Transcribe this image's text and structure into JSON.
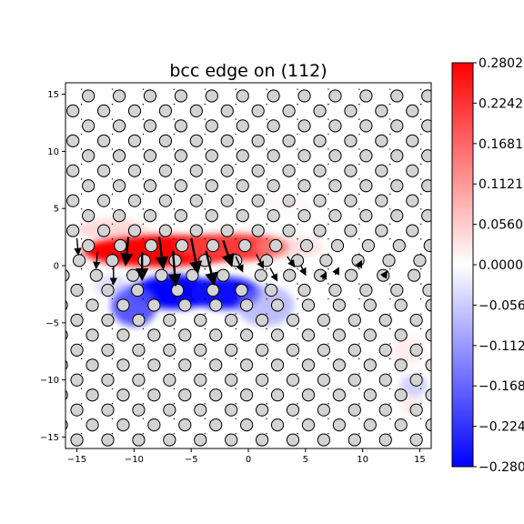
{
  "chart_data": {
    "type": "heatmap",
    "title": "bcc edge on (112)",
    "xlabel": "",
    "ylabel": "",
    "xlim": [
      -16,
      16
    ],
    "ylim": [
      -16,
      16
    ],
    "x_ticks": [
      -15,
      -10,
      -5,
      0,
      5,
      10,
      15
    ],
    "y_ticks": [
      -15,
      -10,
      -5,
      0,
      5,
      10,
      15
    ],
    "x_tick_labels": [
      "−15",
      "−10",
      "−5",
      "0",
      "5",
      "10",
      "15"
    ],
    "y_tick_labels": [
      "−15",
      "−10",
      "−5",
      "0",
      "5",
      "10",
      "15"
    ],
    "colormap": "bwr",
    "colorbar": {
      "vmin": -0.2802,
      "vmax": 0.2802,
      "ticks": [
        0.2802,
        0.2242,
        0.1681,
        0.1121,
        0.056,
        0.0,
        -0.056,
        -0.1121,
        -0.1681,
        -0.2242,
        -0.2802
      ],
      "tick_labels": [
        "0.2802",
        "0.2242",
        "0.1681",
        "0.1121",
        "0.0560",
        "0.0000",
        "−0.0560",
        "−0.1121",
        "−0.1681",
        "−0.2242",
        "−0.2802"
      ]
    },
    "colors": {
      "positive": "#ff0000",
      "zero": "#ffffff",
      "negative": "#0000ff",
      "atom_fill": "#d3d3d3",
      "atom_edge": "#000000"
    },
    "strain_blobs": [
      {
        "x": -8.0,
        "y": 1.3,
        "sx": 6.5,
        "sy": 1.4,
        "v": 0.28
      },
      {
        "x": -1.5,
        "y": 1.6,
        "sx": 5.0,
        "sy": 1.2,
        "v": 0.22
      },
      {
        "x": 3.5,
        "y": 1.6,
        "sx": 3.0,
        "sy": 1.0,
        "v": 0.08
      },
      {
        "x": -12.0,
        "y": 3.2,
        "sx": 3.0,
        "sy": 0.9,
        "v": 0.09
      },
      {
        "x": -6.5,
        "y": -2.3,
        "sx": 3.5,
        "sy": 1.5,
        "v": -0.3
      },
      {
        "x": -2.0,
        "y": -2.4,
        "sx": 3.0,
        "sy": 1.4,
        "v": -0.27
      },
      {
        "x": -10.0,
        "y": -3.5,
        "sx": 2.0,
        "sy": 1.8,
        "v": -0.2
      },
      {
        "x": 1.5,
        "y": -3.5,
        "sx": 2.5,
        "sy": 1.8,
        "v": -0.12
      },
      {
        "x": -12.0,
        "y": -1.8,
        "sx": 1.5,
        "sy": 1.0,
        "v": -0.08
      },
      {
        "x": 3.0,
        "y": 5.2,
        "sx": 3.0,
        "sy": 0.7,
        "v": 0.03
      },
      {
        "x": 14.0,
        "y": -7.5,
        "sx": 1.5,
        "sy": 1.2,
        "v": 0.06
      },
      {
        "x": 14.5,
        "y": -10.5,
        "sx": 1.2,
        "sy": 1.0,
        "v": -0.1
      },
      {
        "x": 14.3,
        "y": -12.3,
        "sx": 1.0,
        "sy": 0.8,
        "v": 0.06
      },
      {
        "x": 8.0,
        "y": -11.0,
        "sx": 2.0,
        "sy": 0.8,
        "v": 0.02
      }
    ],
    "atom_lattice": {
      "row_spacing": 1.31,
      "col_spacing": 2.7,
      "row_offset": 1.35,
      "y_min": -15.5,
      "y_max": 15.2,
      "core_rows": [
        {
          "y": 1.75,
          "x": [
            -16.7,
            -14.0,
            -11.2,
            -8.5,
            -5.8,
            -3.1,
            -0.3,
            2.4,
            5.1,
            7.8,
            10.5,
            13.2,
            15.9
          ]
        },
        {
          "y": 0.45,
          "x": [
            -14.8,
            -11.9,
            -9.1,
            -6.4,
            -3.8,
            -1.1,
            1.6,
            4.3,
            6.8,
            9.6,
            12.3,
            15.0
          ]
        },
        {
          "y": -0.85,
          "x": [
            -16.2,
            -13.3,
            -10.1,
            -7.6,
            -4.9,
            -2.2,
            1.1,
            3.6,
            6.3,
            9.0,
            11.8,
            14.5
          ]
        },
        {
          "y": -2.15,
          "x": [
            -15.0,
            -12.3,
            -9.7,
            -6.2,
            -3.1,
            -0.6,
            2.0,
            4.9,
            7.6,
            10.3,
            13.0,
            15.8
          ]
        }
      ]
    },
    "displacement_arrows": [
      {
        "x": -15.0,
        "y": 2.4,
        "dx": 0.1,
        "dy": -1.2
      },
      {
        "x": -13.2,
        "y": 1.2,
        "dx": -0.1,
        "dy": -1.2
      },
      {
        "x": -11.8,
        "y": 0.0,
        "dx": 0.0,
        "dy": -1.4
      },
      {
        "x": -10.5,
        "y": 2.5,
        "dx": -0.2,
        "dy": -2.0
      },
      {
        "x": -9.3,
        "y": 1.2,
        "dx": 0.0,
        "dy": -2.0
      },
      {
        "x": -7.8,
        "y": 2.5,
        "dx": 0.3,
        "dy": -2.3
      },
      {
        "x": -6.6,
        "y": 1.3,
        "dx": 0.2,
        "dy": -2.6
      },
      {
        "x": -5.0,
        "y": 2.4,
        "dx": 0.5,
        "dy": -2.6
      },
      {
        "x": -3.7,
        "y": 1.3,
        "dx": 0.6,
        "dy": -2.5
      },
      {
        "x": -2.2,
        "y": 2.2,
        "dx": 0.6,
        "dy": -1.8
      },
      {
        "x": -1.1,
        "y": 0.8,
        "dx": 0.5,
        "dy": -1.1
      },
      {
        "x": 0.7,
        "y": 1.0,
        "dx": 0.5,
        "dy": -1.0
      },
      {
        "x": 1.9,
        "y": -0.2,
        "dx": 0.5,
        "dy": -0.9
      },
      {
        "x": 3.4,
        "y": 0.8,
        "dx": 0.5,
        "dy": -0.7
      },
      {
        "x": 4.6,
        "y": 0.0,
        "dx": 0.3,
        "dy": -0.6
      },
      {
        "x": -16.3,
        "y": -0.3,
        "dx": 0.0,
        "dy": -0.9
      },
      {
        "x": 6.5,
        "y": -1.2,
        "dx": 0.2,
        "dy": 0.4
      },
      {
        "x": 7.6,
        "y": -0.8,
        "dx": 0.2,
        "dy": 0.4
      },
      {
        "x": 9.6,
        "y": -0.2,
        "dx": 0.2,
        "dy": 0.4
      },
      {
        "x": 11.8,
        "y": -1.0,
        "dx": 0.2,
        "dy": 0.3
      }
    ]
  }
}
